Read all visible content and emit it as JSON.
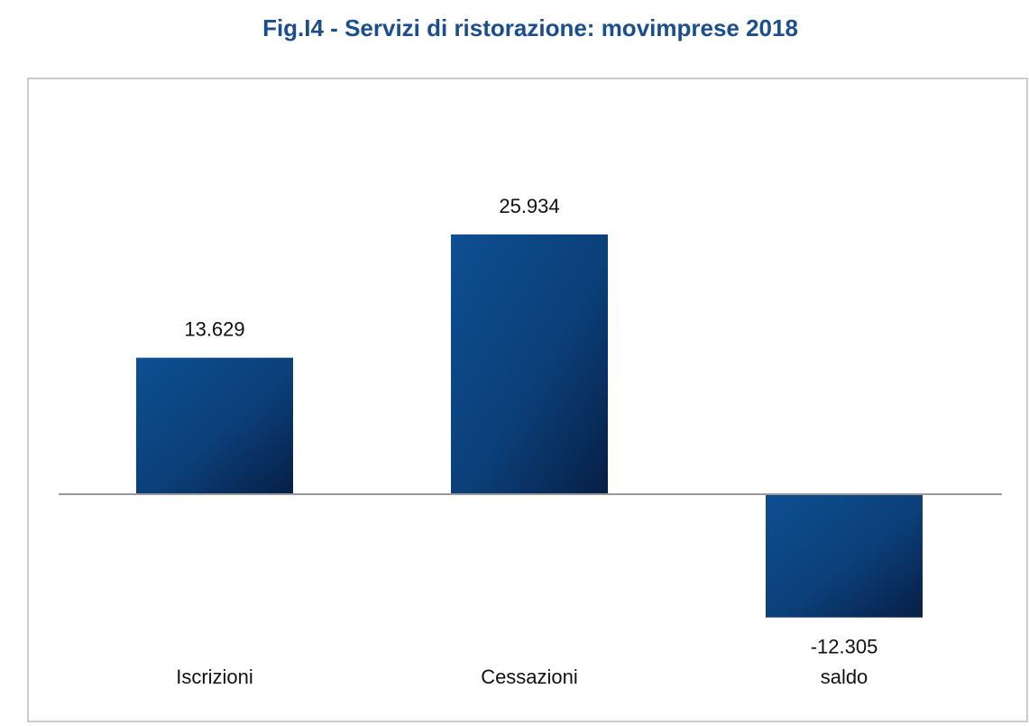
{
  "chart_data": {
    "type": "bar",
    "title": "Fig.I4 - Servizi di ristorazione: movimprese 2018",
    "categories": [
      "Iscrizioni",
      "Cessazioni",
      "saldo"
    ],
    "values": [
      13629,
      25934,
      -12305
    ],
    "value_labels": [
      "13.629",
      "25.934",
      "-12.305"
    ],
    "color": "#0b3f78"
  }
}
